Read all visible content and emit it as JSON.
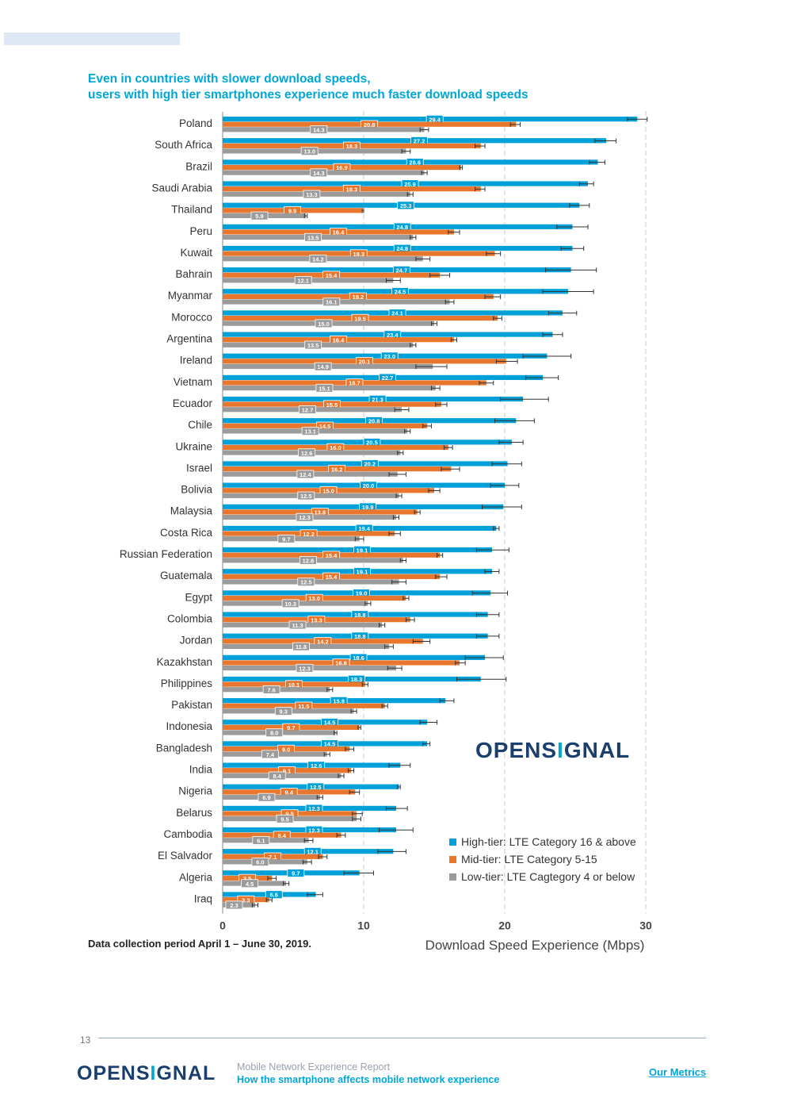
{
  "page": {
    "title_line1": "Even in countries with slower download speeds,",
    "title_line2": "users with high tier smartphones experience much faster download speeds",
    "data_note": "Data collection period April 1 – June 30, 2019.",
    "logo_pre": "OPENS",
    "logo_i": "I",
    "logo_post": "GNAL",
    "footer_page": "13",
    "footer_report": "Mobile Network Experience Report",
    "footer_subtitle": "How the smartphone affects mobile network experience",
    "footer_link": "Our Metrics"
  },
  "colors": {
    "high": "#00a0d8",
    "mid": "#e8762c",
    "low": "#9b9b9b",
    "title": "#00a7d6",
    "navy": "#1a3e6e"
  },
  "chart_data": {
    "type": "bar",
    "orientation": "horizontal",
    "xlabel": "Download Speed Experience (Mbps)",
    "xlim": [
      0,
      30
    ],
    "xticks": [
      0,
      10,
      20,
      30
    ],
    "grid": "vertical dashed",
    "legend_position": "bottom-right",
    "categories": [
      "Poland",
      "South Africa",
      "Brazil",
      "Saudi Arabia",
      "Thailand",
      "Peru",
      "Kuwait",
      "Bahrain",
      "Myanmar",
      "Morocco",
      "Argentina",
      "Ireland",
      "Vietnam",
      "Ecuador",
      "Chile",
      "Ukraine",
      "Israel",
      "Bolivia",
      "Malaysia",
      "Costa Rica",
      "Russian Federation",
      "Guatemala",
      "Egypt",
      "Colombia",
      "Jordan",
      "Kazakhstan",
      "Philippines",
      "Pakistan",
      "Indonesia",
      "Bangladesh",
      "India",
      "Nigeria",
      "Belarus",
      "Cambodia",
      "El Salvador",
      "Algeria",
      "Iraq"
    ],
    "series": [
      {
        "name": "High-tier: LTE Category 16 & above",
        "key": "high",
        "values": [
          29.4,
          27.2,
          26.6,
          25.9,
          25.3,
          24.8,
          24.8,
          24.7,
          24.5,
          24.1,
          23.4,
          23.0,
          22.7,
          21.3,
          20.8,
          20.5,
          20.2,
          20.0,
          19.9,
          19.4,
          19.1,
          19.1,
          19.0,
          18.8,
          18.8,
          18.6,
          18.3,
          15.8,
          14.5,
          14.5,
          12.6,
          12.5,
          12.3,
          12.3,
          12.1,
          9.7,
          6.6
        ]
      },
      {
        "name": "Mid-tier: LTE Category 5-15",
        "key": "mid",
        "values": [
          20.8,
          18.3,
          16.9,
          18.3,
          9.9,
          16.4,
          19.3,
          15.4,
          19.2,
          19.5,
          16.4,
          20.1,
          18.7,
          15.5,
          14.5,
          16.0,
          16.2,
          15.0,
          13.8,
          12.2,
          15.4,
          15.4,
          13.0,
          13.3,
          14.2,
          16.8,
          10.1,
          11.5,
          9.7,
          9.0,
          9.1,
          9.4,
          9.5,
          8.4,
          7.1,
          3.5,
          3.3
        ]
      },
      {
        "name": "Low-tier: LTE Cagtegory 4 or below",
        "key": "low",
        "values": [
          14.3,
          13.0,
          14.3,
          13.3,
          5.9,
          13.5,
          14.2,
          12.1,
          16.1,
          15.0,
          13.5,
          14.9,
          15.1,
          12.7,
          13.1,
          12.6,
          12.4,
          12.5,
          12.3,
          9.7,
          12.8,
          12.5,
          10.3,
          11.3,
          11.8,
          12.3,
          7.6,
          9.3,
          8.0,
          7.4,
          8.4,
          6.9,
          9.5,
          6.1,
          6.0,
          4.5,
          2.3
        ]
      }
    ],
    "errors": {
      "high": [
        [
          28.7,
          30.1
        ],
        [
          26.4,
          27.9
        ],
        [
          26.0,
          27.1
        ],
        [
          25.3,
          26.3
        ],
        [
          24.6,
          26.0
        ],
        [
          23.7,
          25.9
        ],
        [
          24.0,
          25.6
        ],
        [
          22.9,
          26.5
        ],
        [
          22.7,
          26.3
        ],
        [
          23.1,
          25.1
        ],
        [
          22.7,
          24.1
        ],
        [
          21.3,
          24.7
        ],
        [
          21.5,
          23.8
        ],
        [
          19.7,
          23.1
        ],
        [
          19.3,
          22.1
        ],
        [
          19.6,
          21.3
        ],
        [
          19.1,
          21.2
        ],
        [
          19.0,
          21.0
        ],
        [
          18.4,
          21.2
        ],
        [
          19.2,
          19.6
        ],
        [
          18.0,
          20.3
        ],
        [
          18.6,
          19.6
        ],
        [
          17.7,
          20.2
        ],
        [
          18.0,
          19.6
        ],
        [
          18.0,
          19.6
        ],
        [
          17.2,
          19.9
        ],
        [
          16.6,
          20.1
        ],
        [
          15.4,
          16.4
        ],
        [
          14.0,
          15.2
        ],
        [
          14.2,
          14.7
        ],
        [
          11.8,
          13.3
        ],
        [
          12.4,
          12.6
        ],
        [
          11.6,
          13.1
        ],
        [
          11.1,
          13.5
        ],
        [
          11.0,
          13.0
        ],
        [
          8.6,
          10.7
        ],
        [
          6.0,
          7.1
        ]
      ],
      "mid": [
        [
          20.4,
          21.1
        ],
        [
          17.9,
          18.6
        ],
        [
          16.8,
          17.0
        ],
        [
          17.9,
          18.6
        ],
        [
          9.9,
          10.0
        ],
        [
          16.0,
          16.8
        ],
        [
          18.7,
          19.7
        ],
        [
          14.7,
          16.1
        ],
        [
          18.6,
          19.7
        ],
        [
          19.2,
          19.8
        ],
        [
          16.2,
          16.6
        ],
        [
          19.4,
          20.9
        ],
        [
          18.2,
          19.2
        ],
        [
          15.1,
          15.9
        ],
        [
          14.2,
          14.8
        ],
        [
          15.7,
          16.3
        ],
        [
          15.5,
          16.8
        ],
        [
          14.6,
          15.4
        ],
        [
          13.6,
          14.0
        ],
        [
          11.8,
          12.6
        ],
        [
          15.2,
          15.6
        ],
        [
          15.1,
          15.9
        ],
        [
          12.8,
          13.2
        ],
        [
          13.0,
          13.6
        ],
        [
          13.5,
          14.7
        ],
        [
          16.5,
          17.2
        ],
        [
          9.9,
          10.3
        ],
        [
          11.3,
          11.7
        ],
        [
          9.6,
          9.8
        ],
        [
          8.7,
          9.3
        ],
        [
          8.9,
          9.3
        ],
        [
          9.0,
          9.7
        ],
        [
          9.2,
          9.9
        ],
        [
          8.1,
          8.7
        ],
        [
          6.8,
          7.4
        ],
        [
          3.2,
          3.8
        ],
        [
          3.1,
          3.5
        ]
      ],
      "low": [
        [
          14.0,
          14.6
        ],
        [
          12.7,
          13.3
        ],
        [
          14.1,
          14.5
        ],
        [
          13.1,
          13.5
        ],
        [
          5.8,
          6.0
        ],
        [
          13.3,
          13.7
        ],
        [
          13.7,
          14.7
        ],
        [
          11.6,
          12.6
        ],
        [
          15.8,
          16.4
        ],
        [
          14.8,
          15.2
        ],
        [
          13.3,
          13.7
        ],
        [
          13.7,
          15.9
        ],
        [
          14.8,
          15.4
        ],
        [
          12.2,
          13.2
        ],
        [
          12.9,
          13.3
        ],
        [
          12.4,
          12.8
        ],
        [
          11.8,
          13.0
        ],
        [
          12.3,
          12.7
        ],
        [
          12.1,
          12.5
        ],
        [
          9.4,
          10.0
        ],
        [
          12.6,
          13.0
        ],
        [
          12.0,
          13.0
        ],
        [
          10.1,
          10.5
        ],
        [
          11.1,
          11.5
        ],
        [
          11.5,
          12.1
        ],
        [
          11.7,
          12.7
        ],
        [
          7.4,
          7.8
        ],
        [
          9.1,
          9.5
        ],
        [
          7.9,
          8.1
        ],
        [
          7.2,
          7.6
        ],
        [
          8.2,
          8.6
        ],
        [
          6.7,
          7.1
        ],
        [
          9.2,
          9.8
        ],
        [
          5.8,
          6.4
        ],
        [
          5.7,
          6.3
        ],
        [
          4.3,
          4.7
        ],
        [
          2.1,
          2.5
        ]
      ]
    }
  }
}
